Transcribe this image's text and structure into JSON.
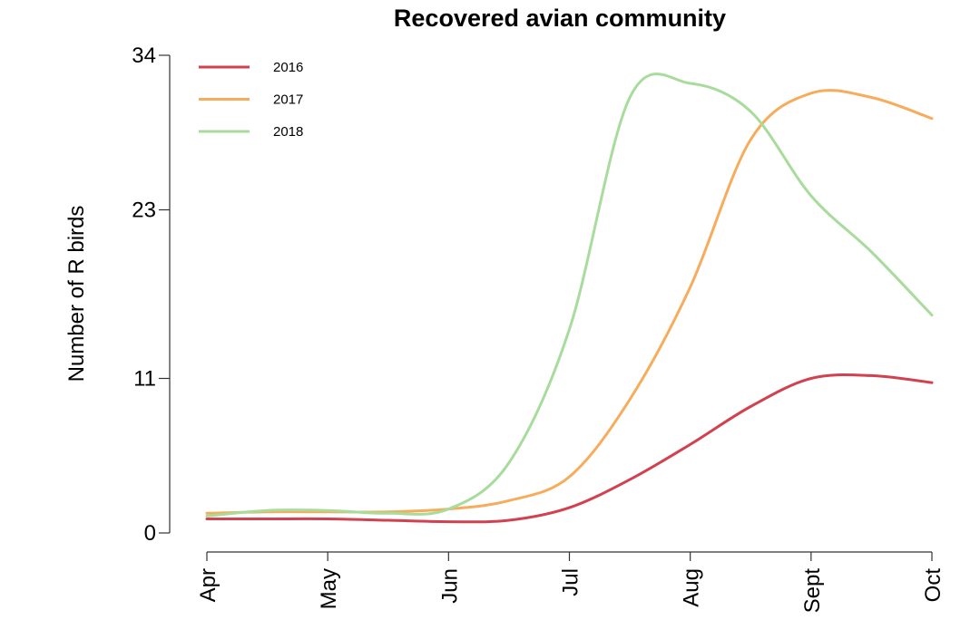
{
  "chart_data": {
    "type": "line",
    "title": "Recovered avian community",
    "xlabel": "",
    "ylabel": "Number of R birds",
    "x_tick_labels": [
      "Apr",
      "May",
      "Jun",
      "Jul",
      "Aug",
      "Sept",
      "Oct"
    ],
    "x": [
      "Apr",
      "Apr-15",
      "May",
      "May-15",
      "Jun",
      "Jun-15",
      "Jul",
      "Jul-15",
      "Aug",
      "Aug-15",
      "Sept",
      "Sept-15",
      "Oct"
    ],
    "xlim_months": [
      "Apr",
      "Oct"
    ],
    "ylim": [
      0,
      34
    ],
    "y_ticks": [
      0,
      11,
      23,
      34
    ],
    "grid": false,
    "legend_position": "top-left",
    "series": [
      {
        "name": "2016",
        "color": "#d1414f",
        "values": [
          1.0,
          1.0,
          1.0,
          0.9,
          0.8,
          0.9,
          1.8,
          3.8,
          6.3,
          9.0,
          11.0,
          11.2,
          10.7
        ]
      },
      {
        "name": "2017",
        "color": "#f7ac5c",
        "values": [
          1.4,
          1.5,
          1.5,
          1.5,
          1.7,
          2.3,
          4.0,
          9.5,
          17.5,
          28.0,
          31.3,
          31.0,
          29.5
        ]
      },
      {
        "name": "2018",
        "color": "#a8dc9c",
        "values": [
          1.2,
          1.6,
          1.6,
          1.4,
          1.7,
          5.0,
          14.5,
          31.0,
          32.0,
          30.0,
          24.0,
          20.0,
          15.5
        ]
      }
    ]
  }
}
